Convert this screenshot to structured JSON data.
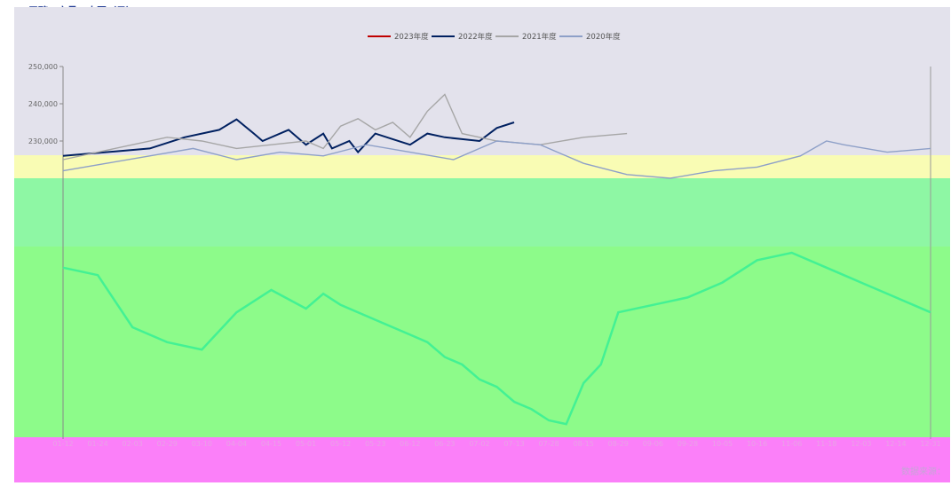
{
  "header": {
    "title": "甲醇：产量：中国（日）"
  },
  "source": "数据来源：",
  "colors": {
    "plot_bg": "#e3e2ec",
    "mint": "#8ef7a4",
    "green": "#8dfb8a",
    "yellow": "#f9fcb4",
    "magenta": "#fb80f9",
    "line_2023": "#c00000",
    "line_2022": "#002060",
    "line_2021": "#a6a6a6",
    "line_2020": "#8ea0c8",
    "line_green": "#43f194"
  },
  "chart_data": {
    "type": "line",
    "title": "",
    "legend": [
      "2023年度",
      "2022年度",
      "2021年度",
      "2020年度"
    ],
    "legend_position": "top-center",
    "ylim": [
      150000,
      250000
    ],
    "y_ticks": [
      "250,000",
      "240,000",
      "230,000"
    ],
    "x_ticks": [
      "01-12",
      "01-24",
      "02-03",
      "02-29",
      "03-10",
      "04-04",
      "04-15",
      "05-01",
      "05-12",
      "05-23",
      "06-12",
      "06-23",
      "07-02",
      "07-13",
      "07-28",
      "08-15",
      "08-29",
      "09-06",
      "09-28",
      "10-05",
      "10-16",
      "11-06",
      "11-18",
      "12-03",
      "12-14",
      "12-31"
    ],
    "series": [
      {
        "name": "2022年度",
        "x": [
          0.0,
          0.1,
          0.14,
          0.18,
          0.2,
          0.22,
          0.23,
          0.26,
          0.28,
          0.3,
          0.31,
          0.33,
          0.34,
          0.36,
          0.38,
          0.4,
          0.42,
          0.44,
          0.46,
          0.48,
          0.5,
          0.52
        ],
        "values": [
          226000,
          228000,
          231000,
          233000,
          235800,
          232000,
          230000,
          233000,
          229000,
          232000,
          228000,
          230000,
          227000,
          232000,
          230500,
          229000,
          232000,
          231000,
          230500,
          230000,
          233500,
          235000
        ]
      },
      {
        "name": "2021年度",
        "x": [
          0.0,
          0.04,
          0.08,
          0.12,
          0.16,
          0.2,
          0.24,
          0.28,
          0.3,
          0.32,
          0.34,
          0.36,
          0.38,
          0.4,
          0.42,
          0.44,
          0.46,
          0.5,
          0.55,
          0.6,
          0.65
        ],
        "values": [
          225000,
          227000,
          229000,
          231000,
          230000,
          228000,
          229000,
          230000,
          228000,
          234000,
          236000,
          233000,
          235000,
          231000,
          238000,
          242500,
          232000,
          230000,
          229000,
          231000,
          232000
        ]
      },
      {
        "name": "2020年度",
        "x": [
          0.0,
          0.05,
          0.1,
          0.15,
          0.2,
          0.25,
          0.3,
          0.35,
          0.4,
          0.45,
          0.5,
          0.55,
          0.6,
          0.65,
          0.7,
          0.75,
          0.8,
          0.85,
          0.88,
          0.9,
          0.95,
          1.0
        ],
        "values": [
          222000,
          224000,
          226000,
          228000,
          225000,
          227000,
          226000,
          229000,
          227000,
          225000,
          230000,
          229000,
          224000,
          221000,
          220000,
          222000,
          223000,
          226000,
          230000,
          229000,
          227000,
          228000
        ]
      },
      {
        "name": "",
        "x": [
          0.0,
          0.04,
          0.08,
          0.12,
          0.16,
          0.2,
          0.24,
          0.28,
          0.3,
          0.32,
          0.36,
          0.4,
          0.42,
          0.44,
          0.46,
          0.48,
          0.5,
          0.52,
          0.54,
          0.56,
          0.58,
          0.6,
          0.62,
          0.64,
          0.68,
          0.72,
          0.76,
          0.8,
          0.84,
          0.88,
          0.9,
          0.92,
          0.94,
          0.96,
          0.98,
          1.0
        ],
        "values": [
          196000,
          194000,
          180000,
          176000,
          174000,
          184000,
          190000,
          185000,
          189000,
          186000,
          182000,
          178000,
          176000,
          172000,
          170000,
          166000,
          164000,
          160000,
          158000,
          155000,
          154000,
          165000,
          170000,
          184000,
          186000,
          188000,
          192000,
          198000,
          200000,
          196000,
          194000,
          192000,
          190000,
          188000,
          186000,
          184000
        ]
      }
    ]
  }
}
